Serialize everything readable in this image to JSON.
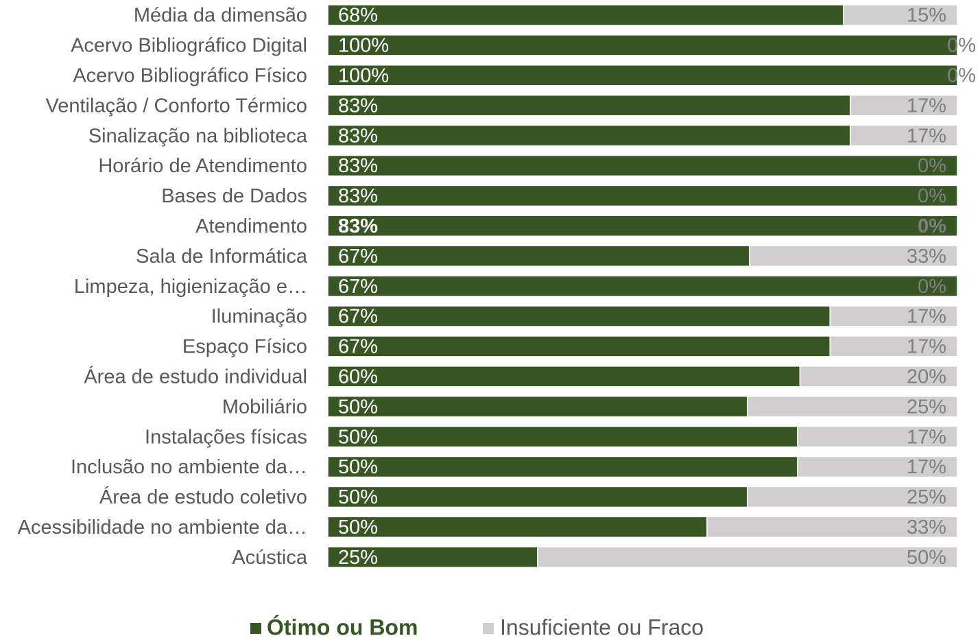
{
  "chart_data": {
    "type": "bar",
    "stacked": "percent",
    "orientation": "horizontal",
    "categories": [
      "Média da dimensão",
      "Acervo Bibliográfico Digital",
      "Acervo Bibliográfico Físico",
      "Ventilação / Conforto Térmico",
      "Sinalização na biblioteca",
      "Horário de Atendimento",
      "Bases de Dados",
      "Atendimento",
      "Sala de Informática",
      "Limpeza, higienização e…",
      "Iluminação",
      "Espaço Físico",
      "Área de estudo individual",
      "Mobiliário",
      "Instalações físicas",
      "Inclusão no ambiente da…",
      "Área de estudo coletivo",
      "Acessibilidade no ambiente da…",
      "Acústica"
    ],
    "series": [
      {
        "name": "Ótimo ou Bom",
        "color": "#375623",
        "values": [
          68,
          100,
          100,
          83,
          83,
          83,
          83,
          83,
          67,
          67,
          67,
          67,
          60,
          50,
          50,
          50,
          50,
          50,
          25
        ],
        "value_labels": [
          "68%",
          "100%",
          "100%",
          "83%",
          "83%",
          "83%",
          "83%",
          "83%",
          "67%",
          "67%",
          "67%",
          "67%",
          "60%",
          "50%",
          "50%",
          "50%",
          "50%",
          "50%",
          "25%"
        ]
      },
      {
        "name": "Insuficiente ou Fraco",
        "color": "#d0cece",
        "values": [
          15,
          0,
          0,
          17,
          17,
          0,
          0,
          0,
          33,
          0,
          17,
          17,
          20,
          25,
          17,
          17,
          25,
          33,
          50
        ],
        "value_labels": [
          "15%",
          "0%",
          "0%",
          "17%",
          "17%",
          "0%",
          "0%",
          "0%",
          "33%",
          "0%",
          "17%",
          "17%",
          "20%",
          "25%",
          "17%",
          "17%",
          "25%",
          "33%",
          "50%"
        ]
      }
    ],
    "highlight_index": 7,
    "legend": "bottom"
  }
}
